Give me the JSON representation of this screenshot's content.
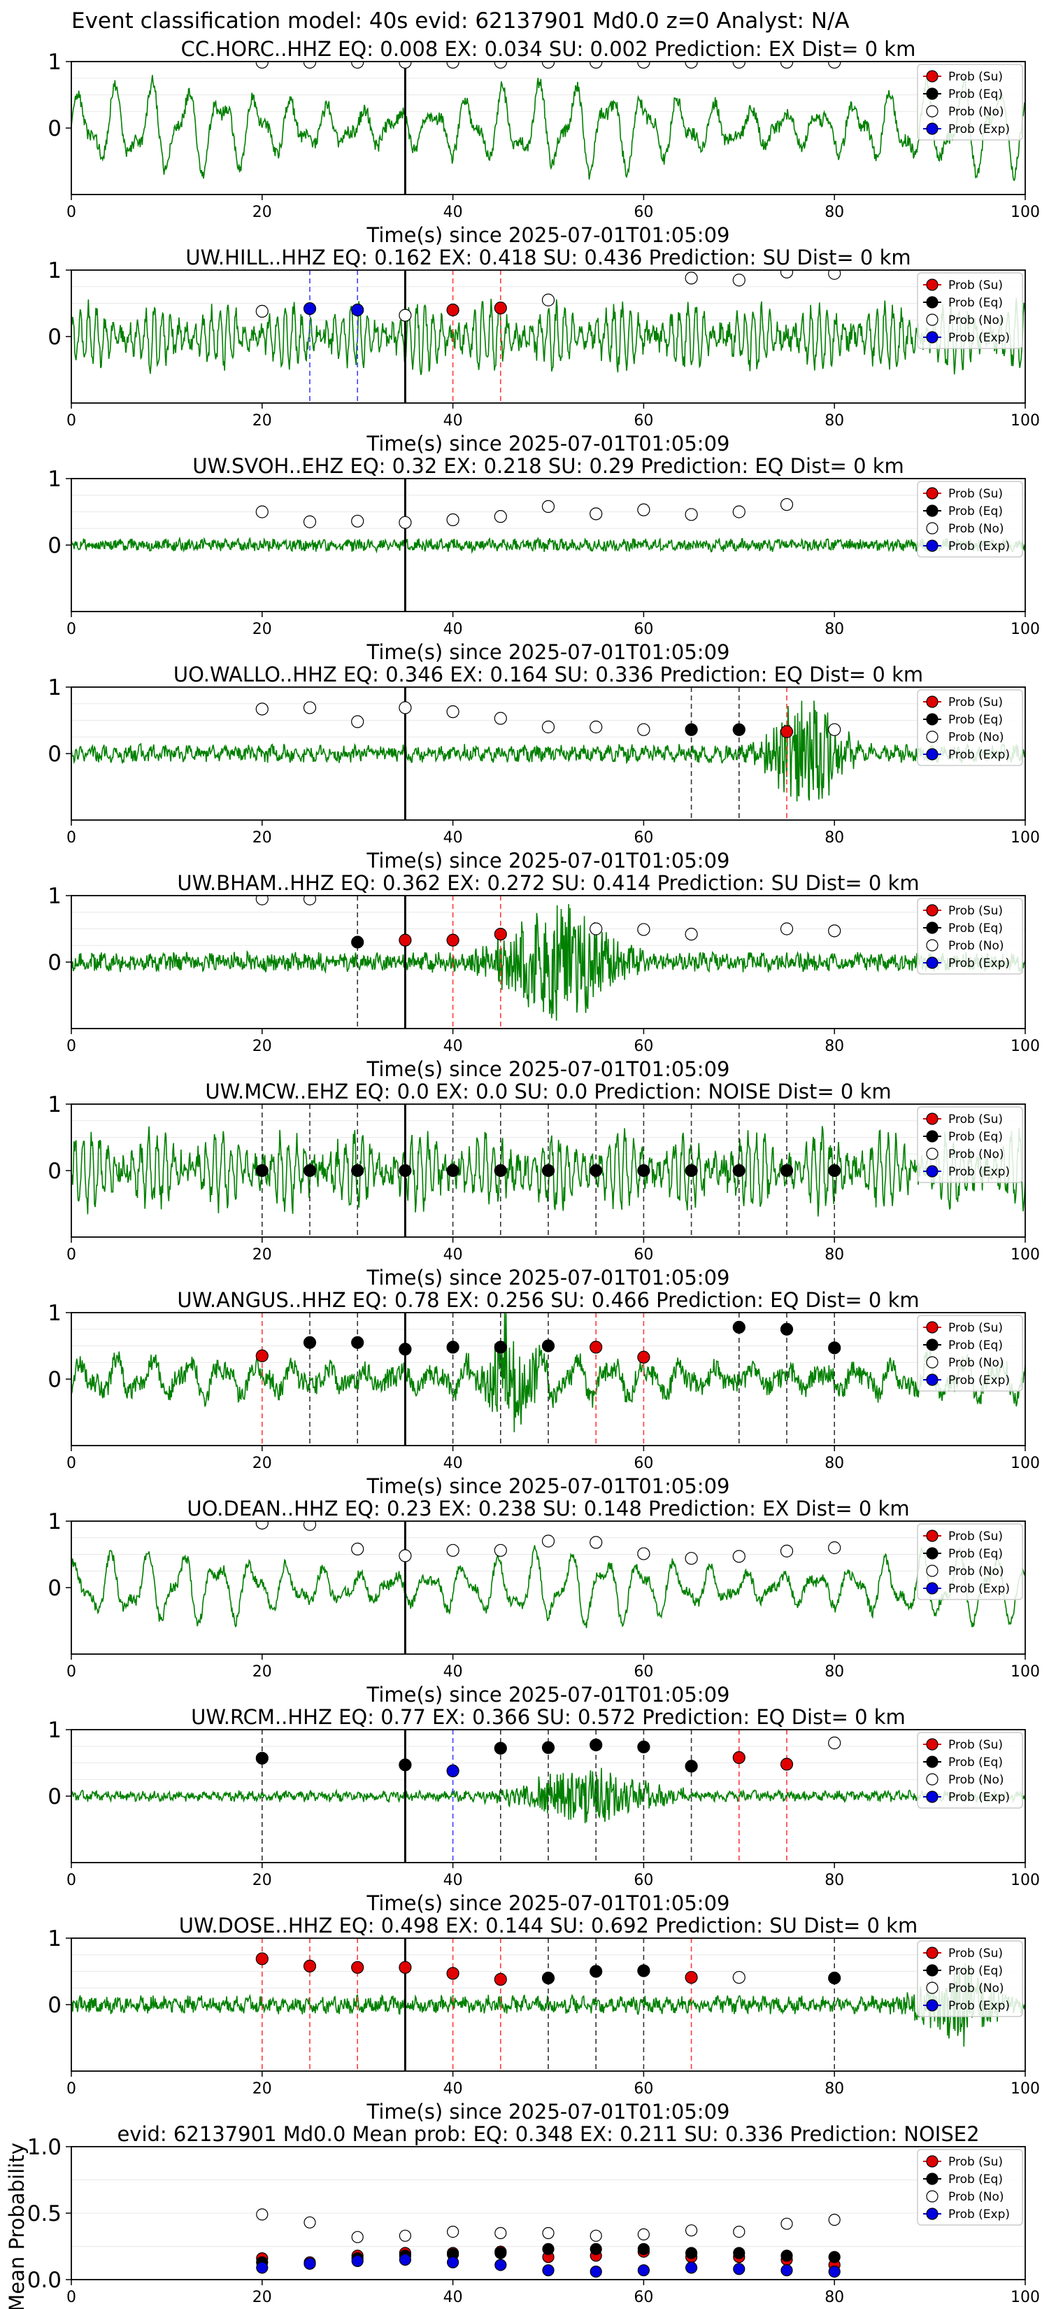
{
  "figure": {
    "title": "Event classification model: 40s evid: 62137901 Md0.0 z=0 Analyst: N/A",
    "colors": {
      "trace": "#008000",
      "su": "#e00000",
      "eq": "#000000",
      "no": "#ffffff",
      "exp": "#0000e0",
      "pick_line": "#000000"
    },
    "legend": [
      "Prob (Su)",
      "Prob (Eq)",
      "Prob (No)",
      "Prob (Exp)"
    ],
    "x_axis_label": "Time(s) since 2025-07-01T01:05:09",
    "y_axis_label": "Mean Probability"
  },
  "chart_data": [
    {
      "type": "line",
      "title": "CC.HORC..HHZ   EQ: 0.008   EX: 0.034   SU: 0.002   Prediction: EX    Dist= 0 km",
      "xlabel": "Time(s) since 2025-07-01T01:05:09",
      "xlim": [
        0,
        100
      ],
      "ylim": [
        -1,
        1
      ],
      "xticks": [
        0,
        20,
        40,
        60,
        80,
        100
      ],
      "yticks": [
        1,
        0
      ],
      "pick_time": 35,
      "waveform": {
        "style": "lowfreq",
        "amplitude": 0.75,
        "noise": 0.1
      },
      "points": [
        {
          "x": 20,
          "y": 0.99,
          "cls": "no"
        },
        {
          "x": 25,
          "y": 0.99,
          "cls": "no"
        },
        {
          "x": 30,
          "y": 0.99,
          "cls": "no"
        },
        {
          "x": 35,
          "y": 0.99,
          "cls": "no"
        },
        {
          "x": 40,
          "y": 0.99,
          "cls": "no"
        },
        {
          "x": 45,
          "y": 0.99,
          "cls": "no"
        },
        {
          "x": 50,
          "y": 0.99,
          "cls": "no"
        },
        {
          "x": 55,
          "y": 0.99,
          "cls": "no"
        },
        {
          "x": 60,
          "y": 0.99,
          "cls": "no"
        },
        {
          "x": 65,
          "y": 0.99,
          "cls": "no"
        },
        {
          "x": 70,
          "y": 0.99,
          "cls": "no"
        },
        {
          "x": 75,
          "y": 0.99,
          "cls": "no"
        },
        {
          "x": 80,
          "y": 0.99,
          "cls": "no"
        }
      ]
    },
    {
      "type": "line",
      "title": "UW.HILL..HHZ   EQ: 0.162  EX: 0.418  SU: 0.436   Prediction: SU    Dist= 0 km",
      "xlabel": "Time(s) since 2025-07-01T01:05:09",
      "xlim": [
        0,
        100
      ],
      "ylim": [
        -1,
        1
      ],
      "xticks": [
        0,
        20,
        40,
        60,
        80,
        100
      ],
      "yticks": [
        1,
        0
      ],
      "pick_time": 35,
      "waveform": {
        "style": "dense",
        "amplitude": 0.45,
        "noise": 0.15
      },
      "points": [
        {
          "x": 20,
          "y": 0.38,
          "cls": "no"
        },
        {
          "x": 25,
          "y": 0.42,
          "cls": "exp"
        },
        {
          "x": 30,
          "y": 0.4,
          "cls": "exp"
        },
        {
          "x": 35,
          "y": 0.32,
          "cls": "no"
        },
        {
          "x": 40,
          "y": 0.4,
          "cls": "su"
        },
        {
          "x": 45,
          "y": 0.43,
          "cls": "su"
        },
        {
          "x": 50,
          "y": 0.55,
          "cls": "no"
        },
        {
          "x": 65,
          "y": 0.88,
          "cls": "no"
        },
        {
          "x": 70,
          "y": 0.85,
          "cls": "no"
        },
        {
          "x": 75,
          "y": 0.97,
          "cls": "no"
        },
        {
          "x": 80,
          "y": 0.95,
          "cls": "no"
        }
      ]
    },
    {
      "type": "line",
      "title": "UW.SVOH..EHZ   EQ: 0.32  EX: 0.218  SU: 0.29   Prediction: EQ    Dist= 0 km",
      "xlabel": "Time(s) since 2025-07-01T01:05:09",
      "xlim": [
        0,
        100
      ],
      "ylim": [
        -1,
        1
      ],
      "xticks": [
        0,
        20,
        40,
        60,
        80,
        100
      ],
      "yticks": [
        1,
        0
      ],
      "pick_time": 35,
      "waveform": {
        "style": "quiet",
        "amplitude": 0.06,
        "noise": 0.08
      },
      "points": [
        {
          "x": 20,
          "y": 0.5,
          "cls": "no"
        },
        {
          "x": 25,
          "y": 0.35,
          "cls": "no"
        },
        {
          "x": 30,
          "y": 0.36,
          "cls": "no"
        },
        {
          "x": 35,
          "y": 0.34,
          "cls": "no"
        },
        {
          "x": 40,
          "y": 0.38,
          "cls": "no"
        },
        {
          "x": 45,
          "y": 0.43,
          "cls": "no"
        },
        {
          "x": 50,
          "y": 0.58,
          "cls": "no"
        },
        {
          "x": 55,
          "y": 0.47,
          "cls": "no"
        },
        {
          "x": 60,
          "y": 0.53,
          "cls": "no"
        },
        {
          "x": 65,
          "y": 0.46,
          "cls": "no"
        },
        {
          "x": 70,
          "y": 0.5,
          "cls": "no"
        },
        {
          "x": 75,
          "y": 0.61,
          "cls": "no"
        }
      ]
    },
    {
      "type": "line",
      "title": "UO.WALLO..HHZ   EQ: 0.346  EX: 0.164  SU: 0.336   Prediction: EQ    Dist= 0 km",
      "xlabel": "Time(s) since 2025-07-01T01:05:09",
      "xlim": [
        0,
        100
      ],
      "ylim": [
        -1,
        1
      ],
      "xticks": [
        0,
        20,
        40,
        60,
        80,
        100
      ],
      "yticks": [
        1,
        0
      ],
      "pick_time": 35,
      "waveform": {
        "style": "burst",
        "amplitude": 0.12,
        "noise": 0.1,
        "burst_center": 77,
        "burst_width": 4,
        "burst_amp": 0.85
      },
      "points": [
        {
          "x": 20,
          "y": 0.67,
          "cls": "no"
        },
        {
          "x": 25,
          "y": 0.69,
          "cls": "no"
        },
        {
          "x": 30,
          "y": 0.48,
          "cls": "no"
        },
        {
          "x": 35,
          "y": 0.69,
          "cls": "no"
        },
        {
          "x": 40,
          "y": 0.63,
          "cls": "no"
        },
        {
          "x": 45,
          "y": 0.53,
          "cls": "no"
        },
        {
          "x": 50,
          "y": 0.4,
          "cls": "no"
        },
        {
          "x": 55,
          "y": 0.4,
          "cls": "no"
        },
        {
          "x": 60,
          "y": 0.36,
          "cls": "no"
        },
        {
          "x": 65,
          "y": 0.36,
          "cls": "eq"
        },
        {
          "x": 70,
          "y": 0.36,
          "cls": "eq"
        },
        {
          "x": 75,
          "y": 0.33,
          "cls": "su"
        },
        {
          "x": 80,
          "y": 0.36,
          "cls": "no"
        }
      ]
    },
    {
      "type": "line",
      "title": "UW.BHAM..HHZ   EQ: 0.362  EX: 0.272  SU: 0.414   Prediction: SU    Dist= 0 km",
      "xlabel": "Time(s) since 2025-07-01T01:05:09",
      "xlim": [
        0,
        100
      ],
      "ylim": [
        -1,
        1
      ],
      "xticks": [
        0,
        20,
        40,
        60,
        80,
        100
      ],
      "yticks": [
        1,
        0
      ],
      "pick_time": 35,
      "waveform": {
        "style": "burst",
        "amplitude": 0.1,
        "noise": 0.12,
        "burst_center": 51,
        "burst_width": 6,
        "burst_amp": 0.85
      },
      "points": [
        {
          "x": 20,
          "y": 0.95,
          "cls": "no"
        },
        {
          "x": 25,
          "y": 0.95,
          "cls": "no"
        },
        {
          "x": 30,
          "y": 0.3,
          "cls": "eq"
        },
        {
          "x": 35,
          "y": 0.33,
          "cls": "su"
        },
        {
          "x": 40,
          "y": 0.33,
          "cls": "su"
        },
        {
          "x": 45,
          "y": 0.42,
          "cls": "su"
        },
        {
          "x": 55,
          "y": 0.5,
          "cls": "no"
        },
        {
          "x": 60,
          "y": 0.49,
          "cls": "no"
        },
        {
          "x": 65,
          "y": 0.42,
          "cls": "no"
        },
        {
          "x": 75,
          "y": 0.5,
          "cls": "no"
        },
        {
          "x": 80,
          "y": 0.47,
          "cls": "no"
        }
      ]
    },
    {
      "type": "line",
      "title": "UW.MCW..EHZ   EQ: 0.0  EX: 0.0  SU: 0.0   Prediction: NOISE    Dist= 0 km",
      "xlabel": "Time(s) since 2025-07-01T01:05:09",
      "xlim": [
        0,
        100
      ],
      "ylim": [
        -1,
        1
      ],
      "xticks": [
        0,
        20,
        40,
        60,
        80,
        100
      ],
      "yticks": [
        1,
        0
      ],
      "pick_time": 35,
      "waveform": {
        "style": "dense",
        "amplitude": 0.5,
        "noise": 0.2
      },
      "points": [
        {
          "x": 20,
          "y": 0.0,
          "cls": "eq"
        },
        {
          "x": 25,
          "y": 0.0,
          "cls": "eq"
        },
        {
          "x": 30,
          "y": 0.0,
          "cls": "eq"
        },
        {
          "x": 35,
          "y": 0.0,
          "cls": "eq"
        },
        {
          "x": 40,
          "y": 0.0,
          "cls": "eq"
        },
        {
          "x": 45,
          "y": 0.0,
          "cls": "eq"
        },
        {
          "x": 50,
          "y": 0.0,
          "cls": "eq"
        },
        {
          "x": 55,
          "y": 0.0,
          "cls": "eq"
        },
        {
          "x": 60,
          "y": 0.0,
          "cls": "eq"
        },
        {
          "x": 65,
          "y": 0.0,
          "cls": "eq"
        },
        {
          "x": 70,
          "y": 0.0,
          "cls": "eq"
        },
        {
          "x": 75,
          "y": 0.0,
          "cls": "eq"
        },
        {
          "x": 80,
          "y": 0.0,
          "cls": "eq"
        }
      ]
    },
    {
      "type": "line",
      "title": "UW.ANGUS..HHZ   EQ: 0.78  EX: 0.256  SU: 0.466   Prediction: EQ    Dist= 0 km",
      "xlabel": "Time(s) since 2025-07-01T01:05:09",
      "xlim": [
        0,
        100
      ],
      "ylim": [
        -1,
        1
      ],
      "xticks": [
        0,
        20,
        40,
        60,
        80,
        100
      ],
      "yticks": [
        1,
        0
      ],
      "pick_time": 35,
      "waveform": {
        "style": "lowfreq",
        "amplitude": 0.35,
        "noise": 0.15,
        "burst_center": 46,
        "burst_width": 3,
        "burst_amp": 0.7
      },
      "points": [
        {
          "x": 20,
          "y": 0.35,
          "cls": "su"
        },
        {
          "x": 25,
          "y": 0.55,
          "cls": "eq"
        },
        {
          "x": 30,
          "y": 0.55,
          "cls": "eq"
        },
        {
          "x": 35,
          "y": 0.45,
          "cls": "eq"
        },
        {
          "x": 40,
          "y": 0.48,
          "cls": "eq"
        },
        {
          "x": 45,
          "y": 0.48,
          "cls": "eq"
        },
        {
          "x": 50,
          "y": 0.5,
          "cls": "eq"
        },
        {
          "x": 55,
          "y": 0.48,
          "cls": "su"
        },
        {
          "x": 60,
          "y": 0.33,
          "cls": "su"
        },
        {
          "x": 70,
          "y": 0.78,
          "cls": "eq"
        },
        {
          "x": 75,
          "y": 0.75,
          "cls": "eq"
        },
        {
          "x": 80,
          "y": 0.47,
          "cls": "eq"
        }
      ]
    },
    {
      "type": "line",
      "title": "UO.DEAN..HHZ   EQ: 0.23  EX: 0.238  SU: 0.148   Prediction: EX    Dist= 0 km",
      "xlabel": "Time(s) since 2025-07-01T01:05:09",
      "xlim": [
        0,
        100
      ],
      "ylim": [
        -1,
        1
      ],
      "xticks": [
        0,
        20,
        40,
        60,
        80,
        100
      ],
      "yticks": [
        1,
        0
      ],
      "pick_time": 35,
      "waveform": {
        "style": "lowfreq",
        "amplitude": 0.6,
        "noise": 0.08
      },
      "points": [
        {
          "x": 20,
          "y": 0.97,
          "cls": "no"
        },
        {
          "x": 25,
          "y": 0.95,
          "cls": "no"
        },
        {
          "x": 30,
          "y": 0.58,
          "cls": "no"
        },
        {
          "x": 35,
          "y": 0.48,
          "cls": "no"
        },
        {
          "x": 40,
          "y": 0.56,
          "cls": "no"
        },
        {
          "x": 45,
          "y": 0.56,
          "cls": "no"
        },
        {
          "x": 50,
          "y": 0.7,
          "cls": "no"
        },
        {
          "x": 55,
          "y": 0.68,
          "cls": "no"
        },
        {
          "x": 60,
          "y": 0.51,
          "cls": "no"
        },
        {
          "x": 65,
          "y": 0.44,
          "cls": "no"
        },
        {
          "x": 70,
          "y": 0.47,
          "cls": "no"
        },
        {
          "x": 75,
          "y": 0.55,
          "cls": "no"
        },
        {
          "x": 80,
          "y": 0.6,
          "cls": "no"
        }
      ]
    },
    {
      "type": "line",
      "title": "UW.RCM..HHZ   EQ: 0.77  EX: 0.366  SU: 0.572   Prediction: EQ    Dist= 0 km",
      "xlabel": "Time(s) since 2025-07-01T01:05:09",
      "xlim": [
        0,
        100
      ],
      "ylim": [
        -1,
        1
      ],
      "xticks": [
        0,
        20,
        40,
        60,
        80,
        100
      ],
      "yticks": [
        1,
        0
      ],
      "pick_time": 35,
      "waveform": {
        "style": "burst",
        "amplitude": 0.08,
        "noise": 0.06,
        "burst_center": 54,
        "burst_width": 7,
        "burst_amp": 0.4
      },
      "points": [
        {
          "x": 20,
          "y": 0.57,
          "cls": "eq"
        },
        {
          "x": 35,
          "y": 0.47,
          "cls": "eq"
        },
        {
          "x": 40,
          "y": 0.38,
          "cls": "exp"
        },
        {
          "x": 45,
          "y": 0.72,
          "cls": "eq"
        },
        {
          "x": 50,
          "y": 0.73,
          "cls": "eq"
        },
        {
          "x": 55,
          "y": 0.77,
          "cls": "eq"
        },
        {
          "x": 60,
          "y": 0.74,
          "cls": "eq"
        },
        {
          "x": 65,
          "y": 0.45,
          "cls": "eq"
        },
        {
          "x": 70,
          "y": 0.58,
          "cls": "su"
        },
        {
          "x": 75,
          "y": 0.48,
          "cls": "su"
        },
        {
          "x": 80,
          "y": 0.8,
          "cls": "no"
        }
      ]
    },
    {
      "type": "line",
      "title": "UW.DOSE..HHZ   EQ: 0.498  EX: 0.144  SU: 0.692   Prediction: SU    Dist= 0 km",
      "xlabel": "Time(s) since 2025-07-01T01:05:09",
      "xlim": [
        0,
        100
      ],
      "ylim": [
        -1,
        1
      ],
      "xticks": [
        0,
        20,
        40,
        60,
        80,
        100
      ],
      "yticks": [
        1,
        0
      ],
      "pick_time": 35,
      "waveform": {
        "style": "burst",
        "amplitude": 0.12,
        "noise": 0.1,
        "burst_center": 93,
        "burst_width": 4,
        "burst_amp": 0.6
      },
      "points": [
        {
          "x": 20,
          "y": 0.69,
          "cls": "su"
        },
        {
          "x": 25,
          "y": 0.58,
          "cls": "su"
        },
        {
          "x": 30,
          "y": 0.56,
          "cls": "su"
        },
        {
          "x": 35,
          "y": 0.56,
          "cls": "su"
        },
        {
          "x": 40,
          "y": 0.47,
          "cls": "su"
        },
        {
          "x": 45,
          "y": 0.38,
          "cls": "su"
        },
        {
          "x": 50,
          "y": 0.4,
          "cls": "eq"
        },
        {
          "x": 55,
          "y": 0.5,
          "cls": "eq"
        },
        {
          "x": 60,
          "y": 0.51,
          "cls": "eq"
        },
        {
          "x": 65,
          "y": 0.41,
          "cls": "su"
        },
        {
          "x": 70,
          "y": 0.41,
          "cls": "no"
        },
        {
          "x": 80,
          "y": 0.4,
          "cls": "eq"
        }
      ]
    },
    {
      "type": "scatter",
      "title": "evid: 62137901  Md0.0   Mean prob:   EQ: 0.348  EX: 0.211  SU: 0.336   Prediction: NOISE2",
      "xlabel": "",
      "ylabel": "Mean Probability",
      "xlim": [
        0,
        100
      ],
      "ylim": [
        0,
        1
      ],
      "xticks": [
        0,
        20,
        40,
        60,
        80,
        100
      ],
      "yticks": [
        1.0,
        0.5,
        0.0
      ],
      "x": [
        20,
        25,
        30,
        35,
        40,
        45,
        50,
        55,
        60,
        65,
        70,
        75,
        80
      ],
      "series": [
        {
          "name": "Prob (Su)",
          "cls": "su",
          "values": [
            0.16,
            0.13,
            0.18,
            0.2,
            0.2,
            0.21,
            0.17,
            0.18,
            0.21,
            0.17,
            0.17,
            0.15,
            0.11
          ]
        },
        {
          "name": "Prob (Eq)",
          "cls": "eq",
          "values": [
            0.13,
            0.12,
            0.16,
            0.18,
            0.19,
            0.2,
            0.23,
            0.23,
            0.23,
            0.2,
            0.2,
            0.18,
            0.17
          ]
        },
        {
          "name": "Prob (No)",
          "cls": "no",
          "values": [
            0.49,
            0.43,
            0.32,
            0.33,
            0.36,
            0.35,
            0.35,
            0.33,
            0.34,
            0.37,
            0.36,
            0.42,
            0.45
          ]
        },
        {
          "name": "Prob (Exp)",
          "cls": "exp",
          "values": [
            0.09,
            0.12,
            0.14,
            0.15,
            0.13,
            0.11,
            0.07,
            0.06,
            0.07,
            0.09,
            0.08,
            0.07,
            0.06
          ]
        }
      ]
    }
  ]
}
